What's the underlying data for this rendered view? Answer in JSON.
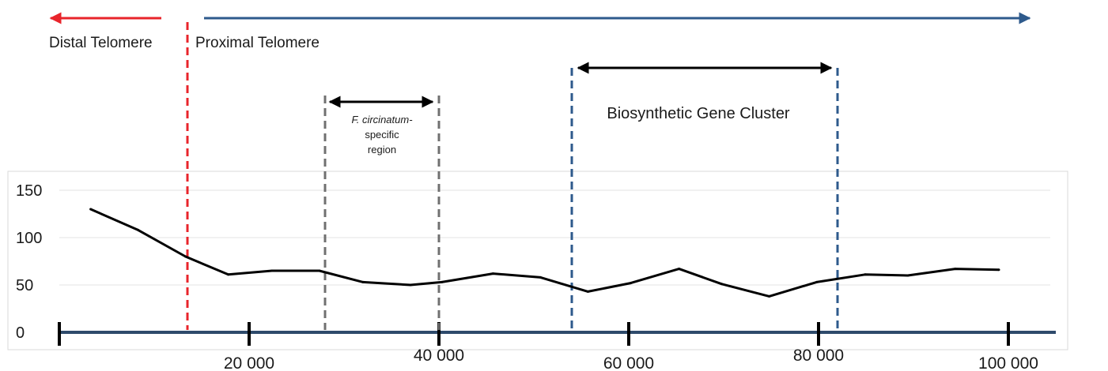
{
  "chart_data": {
    "type": "line",
    "title": "",
    "xlabel": "",
    "ylabel": "",
    "xlim": [
      0,
      105000
    ],
    "ylim": [
      0,
      150
    ],
    "yticks": [
      "0",
      "50",
      "100",
      "150"
    ],
    "xticks": [
      {
        "value": 20000,
        "label": "20 000"
      },
      {
        "value": 40000,
        "label": "40 000"
      },
      {
        "value": 60000,
        "label": "60 000"
      },
      {
        "value": 80000,
        "label": "80 000"
      },
      {
        "value": 100000,
        "label": "100 000"
      }
    ],
    "grid": true,
    "series": [
      {
        "x": [
          3300,
          8300,
          13300,
          17800,
          22400,
          27400,
          32000,
          37000,
          40300,
          45700,
          50700,
          55700,
          60200,
          65300,
          69800,
          74800,
          79800,
          84900,
          89400,
          94400,
          99000
        ],
        "y": [
          130,
          108,
          80,
          61,
          65,
          65,
          53,
          50,
          53,
          62,
          58,
          43,
          52,
          67,
          51,
          38,
          53,
          61,
          60,
          67,
          66
        ]
      }
    ],
    "color": "#000000",
    "annotations": {
      "boundary_color": "#e8242b",
      "arrow_color": "#2e5a8c",
      "region_color": "#707070",
      "cluster_color": "#2e5a8c",
      "distal_label": "Distal Telomere",
      "proximal_label": "Proximal Telomere",
      "telomere_boundary_x": 13500,
      "region_label_line1": "F. circinatum-",
      "region_label_line2": "specific",
      "region_label_line3": "region",
      "region_start_x": 28000,
      "region_end_x": 40000,
      "cluster_label": "Biosynthetic Gene Cluster",
      "cluster_start_x": 54000,
      "cluster_end_x": 82000
    }
  }
}
